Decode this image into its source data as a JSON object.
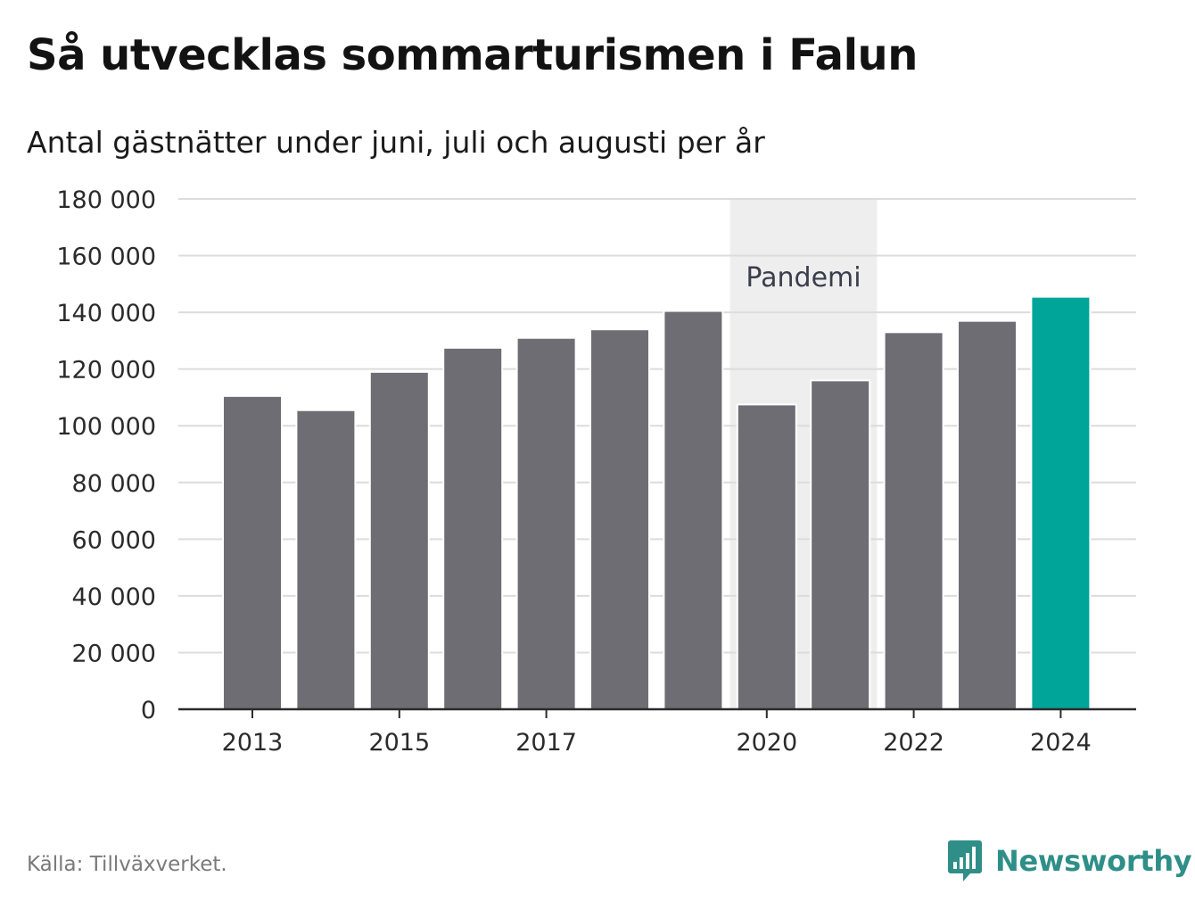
{
  "chart_data": {
    "type": "bar",
    "title": "Så utvecklas sommarturismen i Falun",
    "subtitle": "Antal gästnätter under juni, juli och augusti per år",
    "categories": [
      2013,
      2014,
      2015,
      2016,
      2017,
      2018,
      2019,
      2020,
      2021,
      2022,
      2023,
      2024
    ],
    "x_tick_labels": [
      "2013",
      "2015",
      "2017",
      "2020",
      "2022",
      "2024"
    ],
    "values": [
      110500,
      105500,
      119000,
      127500,
      131000,
      134000,
      140500,
      107500,
      116000,
      133000,
      137000,
      145500
    ],
    "ylim": [
      0,
      180000
    ],
    "y_ticks": [
      0,
      20000,
      40000,
      60000,
      80000,
      100000,
      120000,
      140000,
      160000,
      180000
    ],
    "y_tick_labels": [
      "0",
      "20 000",
      "40 000",
      "60 000",
      "80 000",
      "100 000",
      "120 000",
      "140 000",
      "160 000",
      "180 000"
    ],
    "grid": true,
    "highlight": {
      "category": 2024,
      "color": "#00a59a"
    },
    "bar_color": "#6e6d73",
    "annotation": {
      "label": "Pandemi",
      "from": 2020,
      "to": 2021,
      "color": "#eeeeee"
    }
  },
  "footer": {
    "source": "Källa: Tillväxverket.",
    "brand": "Newsworthy",
    "brand_icon": "newsworthy-chart-bubble-icon",
    "brand_color": "#2f8f88"
  }
}
